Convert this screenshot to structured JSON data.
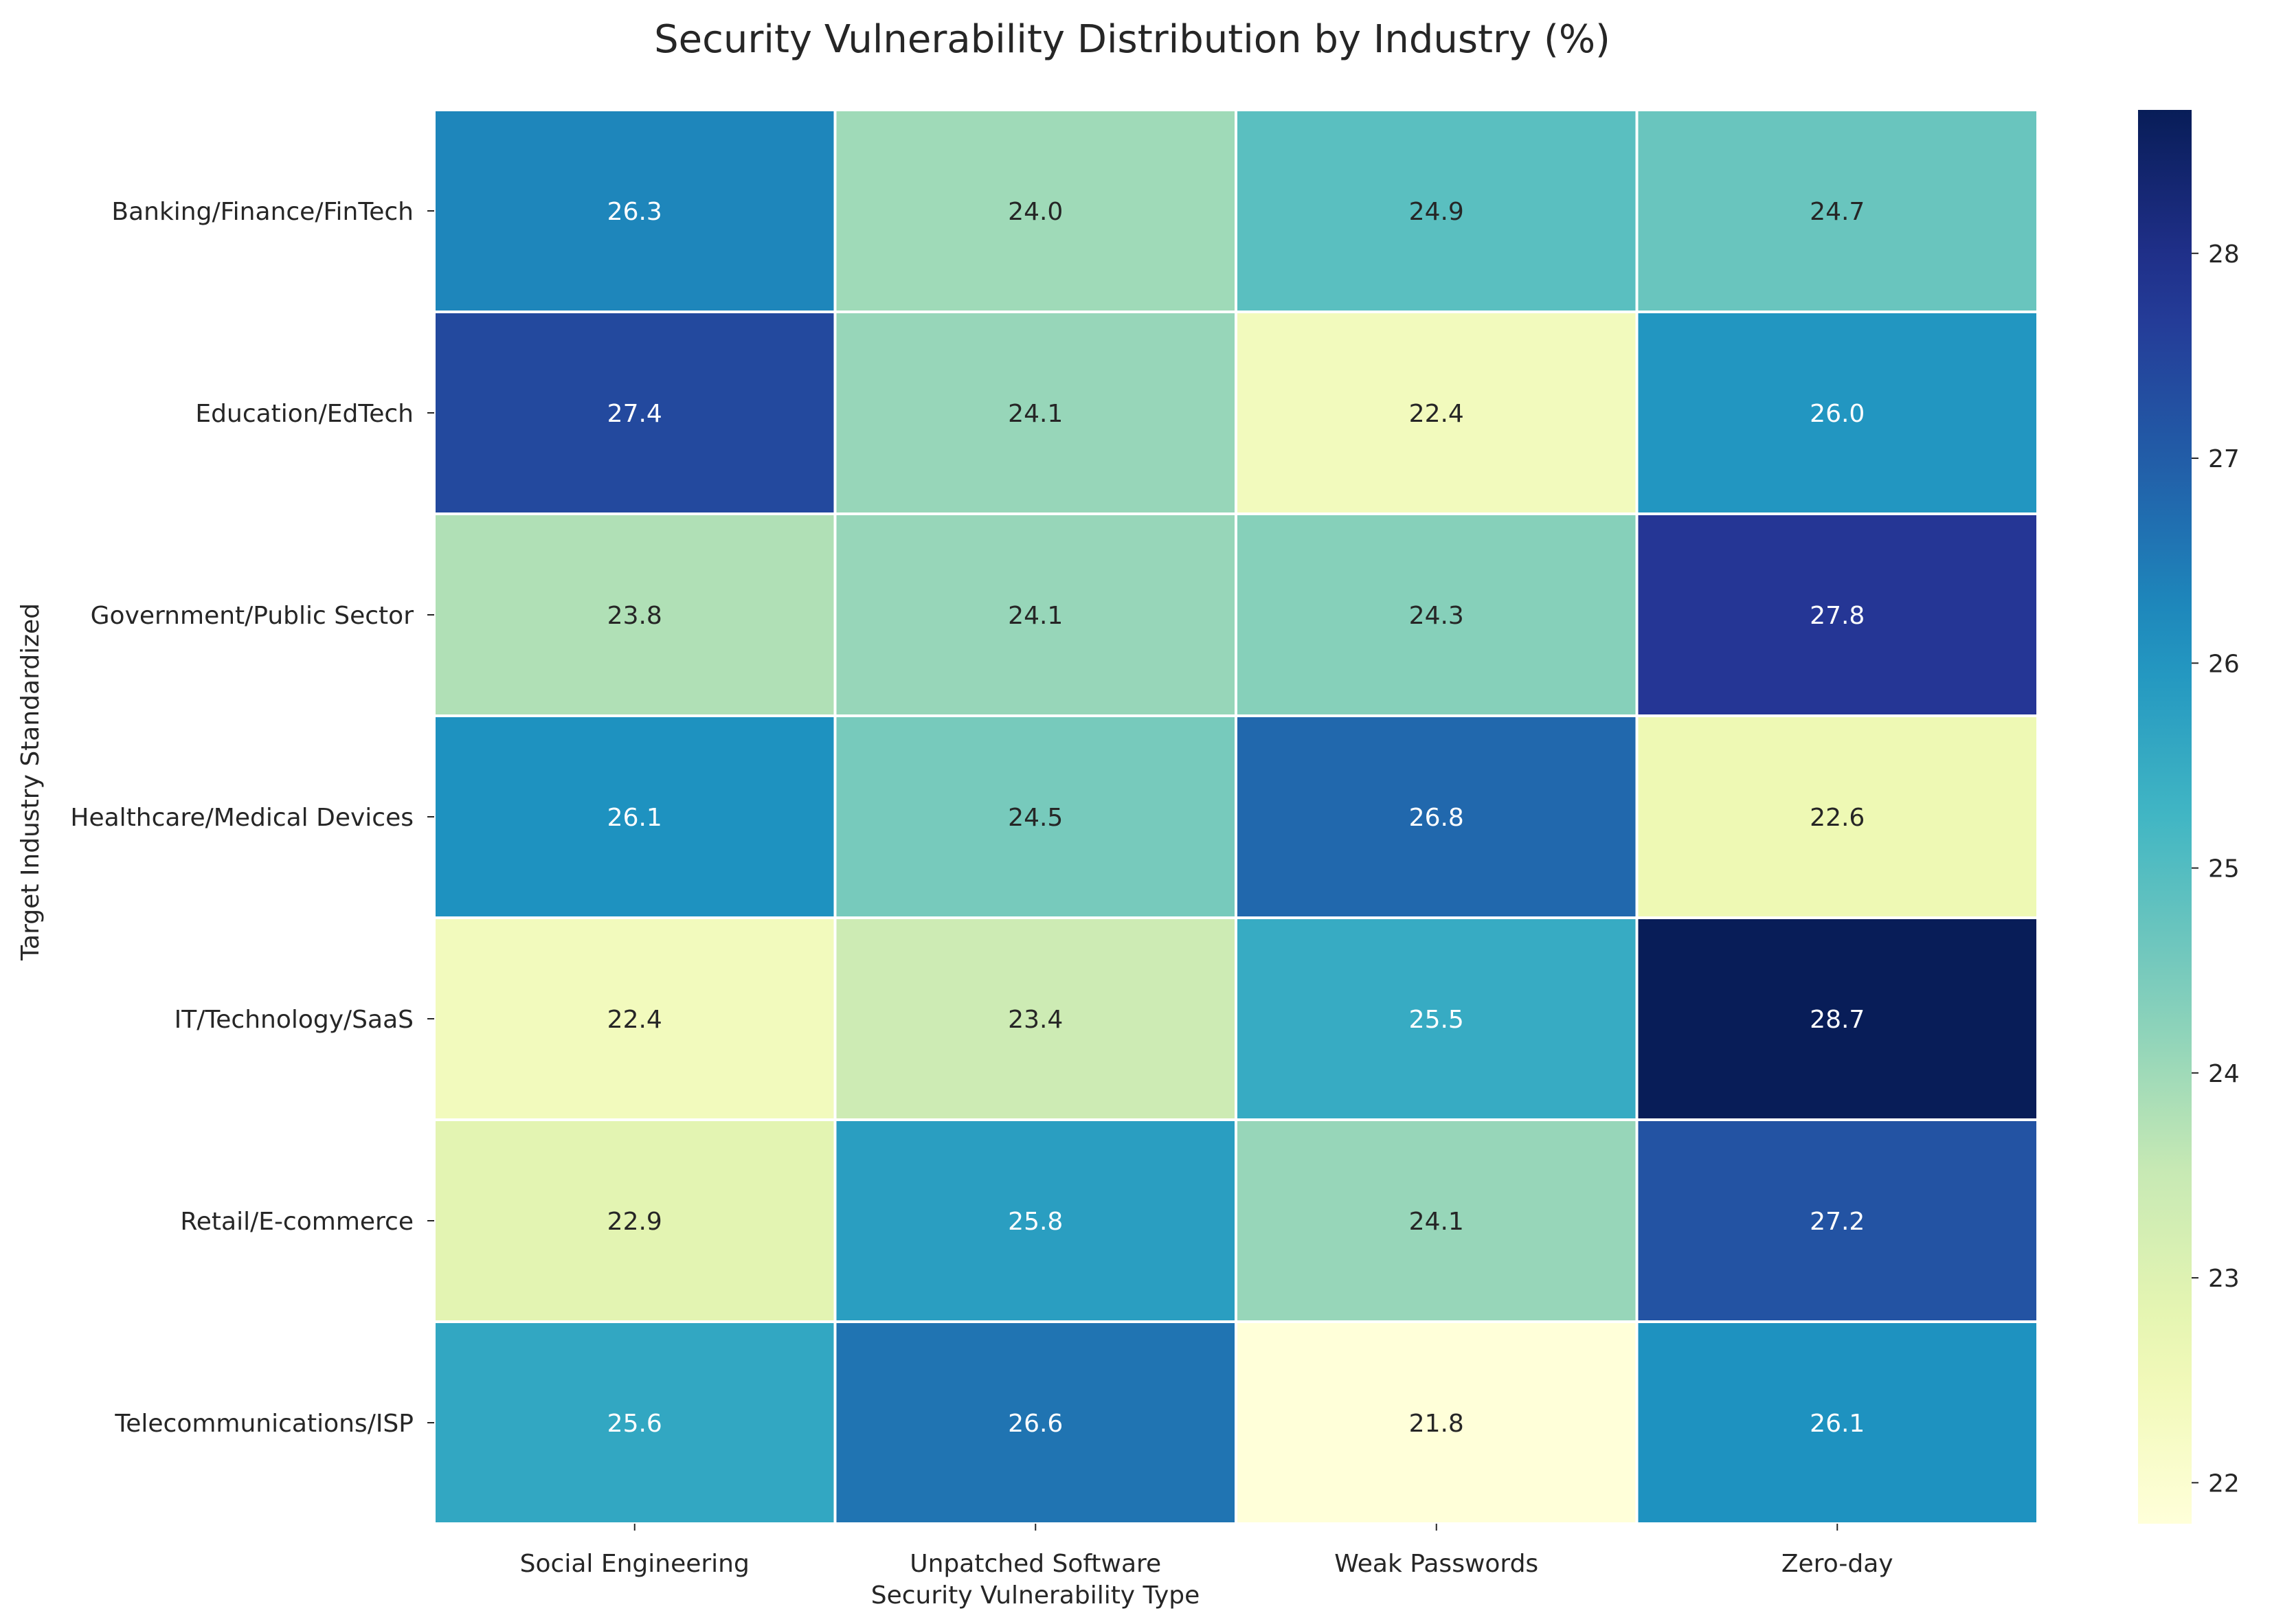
{
  "chart_data": {
    "type": "heatmap",
    "title": "Security Vulnerability Distribution by Industry (%)",
    "xlabel": "Security Vulnerability Type",
    "ylabel": "Target Industry Standardized",
    "x_categories": [
      "Social Engineering",
      "Unpatched Software",
      "Weak Passwords",
      "Zero-day"
    ],
    "y_categories": [
      "Banking/Finance/FinTech",
      "Education/EdTech",
      "Government/Public Sector",
      "Healthcare/Medical Devices",
      "IT/Technology/SaaS",
      "Retail/E-commerce",
      "Telecommunications/ISP"
    ],
    "values": [
      [
        26.3,
        24.0,
        24.9,
        24.7
      ],
      [
        27.4,
        24.1,
        22.4,
        26.0
      ],
      [
        23.8,
        24.1,
        24.3,
        27.8
      ],
      [
        26.1,
        24.5,
        26.8,
        22.6
      ],
      [
        22.4,
        23.4,
        25.5,
        28.7
      ],
      [
        22.9,
        25.8,
        24.1,
        27.2
      ],
      [
        25.6,
        26.6,
        21.8,
        26.1
      ]
    ],
    "colormap": "YlGnBu",
    "value_range": [
      21.8,
      28.7
    ],
    "colorbar_ticks": [
      22,
      23,
      24,
      25,
      26,
      27,
      28
    ],
    "annotations": true,
    "value_format": "0.0"
  }
}
